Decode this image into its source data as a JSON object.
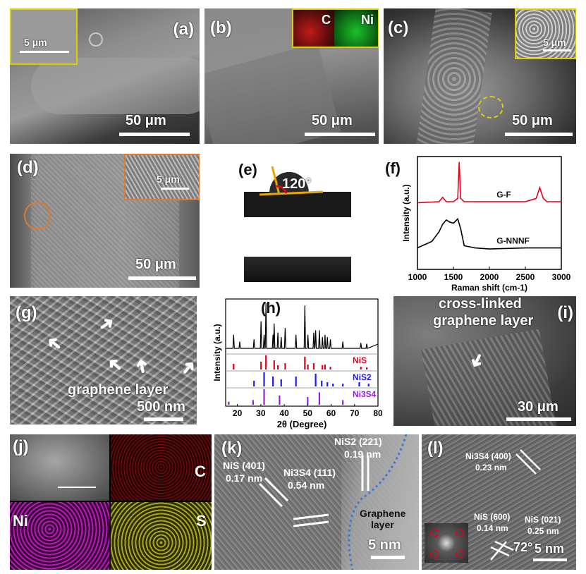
{
  "panels": {
    "a": {
      "label": "(a)",
      "scale": "50 μm",
      "inset_scale": "5 μm"
    },
    "b": {
      "label": "(b)",
      "scale": "50 μm",
      "map_c": "C",
      "map_ni": "Ni"
    },
    "c": {
      "label": "(c)",
      "scale": "50 μm",
      "inset_scale": "5 μm"
    },
    "d": {
      "label": "(d)",
      "scale": "50 μm",
      "inset_scale": "5 μm"
    },
    "e": {
      "label": "(e)",
      "angle": "120°"
    },
    "f": {
      "label": "(f)"
    },
    "g": {
      "label": "(g)",
      "annotation": "graphene layer",
      "scale": "500 nm"
    },
    "h": {
      "label": "(h)"
    },
    "i": {
      "label": "(i)",
      "annotation_line1": "cross-linked",
      "annotation_line2": "graphene layer",
      "scale": "30 μm"
    },
    "j": {
      "label": "(j)",
      "map_c": "C",
      "map_ni": "Ni",
      "map_s": "S"
    },
    "k": {
      "label": "(k)",
      "nis": "NiS (401)",
      "nis_d": "0.17 nm",
      "ni3s4": "Ni3S4 (111)",
      "ni3s4_d": "0.54 nm",
      "nis2": "NiS2 (221)",
      "nis2_d": "0.19 nm",
      "graphene": "Graphene",
      "graphene2": "layer",
      "scale": "5 nm"
    },
    "l": {
      "label": "(l)",
      "ni3s4": "Ni3S4 (400)",
      "ni3s4_d": "0.23 nm",
      "nis600": "NiS (600)",
      "nis600_d": "0.14 nm",
      "nis021": "NiS (021)",
      "nis021_d": "0.25 nm",
      "angle": "72°",
      "scale": "5 nm"
    }
  },
  "colors": {
    "inset_border": "#d8d000",
    "orange": "#e07a2e",
    "red": "#e8001a",
    "blue": "#1a1aff",
    "purple": "#9b1ae8",
    "black": "#000000"
  },
  "chart_data": [
    {
      "type": "line",
      "panel": "f",
      "xlabel": "Raman shift (cm-1)",
      "ylabel": "Intensity (a.u.)",
      "xlim": [
        1000,
        3000
      ],
      "xticks": [
        "1000",
        "1500",
        "2000",
        "2500",
        "3000"
      ],
      "series": [
        {
          "name": "G-F",
          "color": "#e8001a",
          "x": [
            1000,
            1300,
            1350,
            1400,
            1500,
            1560,
            1580,
            1600,
            1650,
            1800,
            2000,
            2500,
            2650,
            2700,
            2750,
            2800,
            3000
          ],
          "y": [
            0.62,
            0.63,
            0.67,
            0.63,
            0.63,
            0.66,
            1.0,
            0.66,
            0.63,
            0.63,
            0.63,
            0.63,
            0.66,
            0.76,
            0.66,
            0.63,
            0.63
          ]
        },
        {
          "name": "G-NNNF",
          "color": "#000000",
          "x": [
            1000,
            1200,
            1300,
            1350,
            1400,
            1450,
            1500,
            1560,
            1600,
            1650,
            1800,
            2000,
            2500,
            3000
          ],
          "y": [
            0.2,
            0.26,
            0.35,
            0.42,
            0.46,
            0.44,
            0.43,
            0.47,
            0.38,
            0.22,
            0.2,
            0.19,
            0.2,
            0.2
          ]
        }
      ]
    },
    {
      "type": "bar",
      "panel": "h",
      "xlabel": "2θ (Degree)",
      "ylabel": "Intensity (a.u.)",
      "xlim": [
        15,
        80
      ],
      "xticks": [
        "20",
        "30",
        "40",
        "50",
        "60",
        "70",
        "80"
      ],
      "series": [
        {
          "name": "NiS",
          "color": "#e8001a",
          "x": [
            18.4,
            30.1,
            32.2,
            35.7,
            37.3,
            40.4,
            48.8,
            50.1,
            52.6,
            56.3,
            57.4,
            59.7,
            72.7,
            75.2
          ],
          "y": [
            0.4,
            0.55,
            1.0,
            0.65,
            0.3,
            0.45,
            0.9,
            0.35,
            0.45,
            0.3,
            0.35,
            0.2,
            0.2,
            0.15
          ]
        },
        {
          "name": "NiS2",
          "color": "#1a1aff",
          "x": [
            27.1,
            31.4,
            35.2,
            38.7,
            45.0,
            53.4,
            56.0,
            58.4,
            60.8,
            65.0,
            72.0,
            76.0
          ],
          "y": [
            0.4,
            1.0,
            0.7,
            0.5,
            0.7,
            0.9,
            0.4,
            0.3,
            0.2,
            0.2,
            0.3,
            0.2
          ]
        },
        {
          "name": "Ni3S4",
          "color": "#9b1ae8",
          "x": [
            16.3,
            26.7,
            31.4,
            38.0,
            50.0,
            55.0,
            65.0
          ],
          "y": [
            0.2,
            0.3,
            1.0,
            0.6,
            0.5,
            0.8,
            0.3
          ]
        }
      ],
      "measured": {
        "color": "#000000",
        "x": [
          18.4,
          21.0,
          27.1,
          30.1,
          31.4,
          32.2,
          35.2,
          35.7,
          37.3,
          38.7,
          40.4,
          45.0,
          48.8,
          50.1,
          52.6,
          53.4,
          55.0,
          56.3,
          57.4,
          58.4,
          59.7,
          65.0,
          72.7,
          75.2
        ],
        "y": [
          0.3,
          0.15,
          0.2,
          0.6,
          0.3,
          1.0,
          0.3,
          0.55,
          0.35,
          0.25,
          0.45,
          0.3,
          0.95,
          0.3,
          0.35,
          0.4,
          0.4,
          0.25,
          0.3,
          0.25,
          0.2,
          0.15,
          0.12,
          0.1
        ]
      }
    }
  ]
}
